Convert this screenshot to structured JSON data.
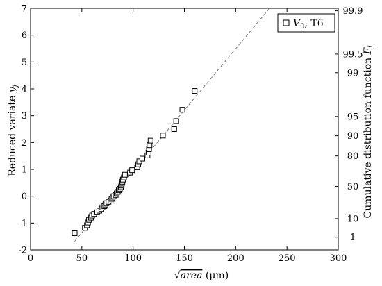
{
  "chart_data": {
    "type": "scatter",
    "xlabel": "√area (μm)",
    "ylabel": "Reduced variate y_j",
    "y2label": "Cumulative distribution function F_j",
    "xlim": [
      0,
      300
    ],
    "ylim": [
      -2,
      7
    ],
    "xticks": [
      "0",
      "50",
      "100",
      "150",
      "200",
      "250",
      "300"
    ],
    "yticks": [
      "-2",
      "-1",
      "0",
      "1",
      "2",
      "3",
      "4",
      "5",
      "6",
      "7"
    ],
    "y2ticks": [
      "1",
      "10",
      "50",
      "80",
      "90",
      "95",
      "99",
      "99.5",
      "99.9"
    ],
    "legend_position": "top-right",
    "series": [
      {
        "name": "V0, T6",
        "marker": "open-square",
        "points": [
          [
            43,
            -1.38
          ],
          [
            53,
            -1.18
          ],
          [
            55,
            -1.08
          ],
          [
            56,
            -0.98
          ],
          [
            57,
            -0.88
          ],
          [
            59,
            -0.8
          ],
          [
            60,
            -0.72
          ],
          [
            62,
            -0.66
          ],
          [
            65,
            -0.6
          ],
          [
            67,
            -0.54
          ],
          [
            69,
            -0.48
          ],
          [
            70,
            -0.42
          ],
          [
            72,
            -0.37
          ],
          [
            73,
            -0.31
          ],
          [
            74,
            -0.26
          ],
          [
            76,
            -0.21
          ],
          [
            78,
            -0.16
          ],
          [
            79,
            -0.1
          ],
          [
            80,
            -0.05
          ],
          [
            81,
            0.0
          ],
          [
            83,
            0.05
          ],
          [
            84,
            0.11
          ],
          [
            85,
            0.16
          ],
          [
            86,
            0.22
          ],
          [
            87,
            0.28
          ],
          [
            88,
            0.34
          ],
          [
            88.5,
            0.4
          ],
          [
            89,
            0.47
          ],
          [
            89.5,
            0.54
          ],
          [
            90,
            0.62
          ],
          [
            91,
            0.7
          ],
          [
            92,
            0.8
          ],
          [
            97,
            0.88
          ],
          [
            99,
            0.97
          ],
          [
            104,
            1.08
          ],
          [
            105,
            1.19
          ],
          [
            106,
            1.3
          ],
          [
            109,
            1.4
          ],
          [
            114,
            1.52
          ],
          [
            115,
            1.62
          ],
          [
            115.5,
            1.75
          ],
          [
            116,
            1.9
          ],
          [
            117,
            2.07
          ],
          [
            129,
            2.26
          ],
          [
            140,
            2.5
          ],
          [
            142,
            2.8
          ],
          [
            148,
            3.22
          ],
          [
            160,
            3.92
          ]
        ]
      }
    ],
    "fit_line": {
      "style": "dashed",
      "points": [
        [
          43,
          -1.68
        ],
        [
          233,
          7.0
        ]
      ]
    },
    "legend_entry": {
      "symbol": "V",
      "subscript": "0",
      "suffix": ", T6"
    }
  }
}
